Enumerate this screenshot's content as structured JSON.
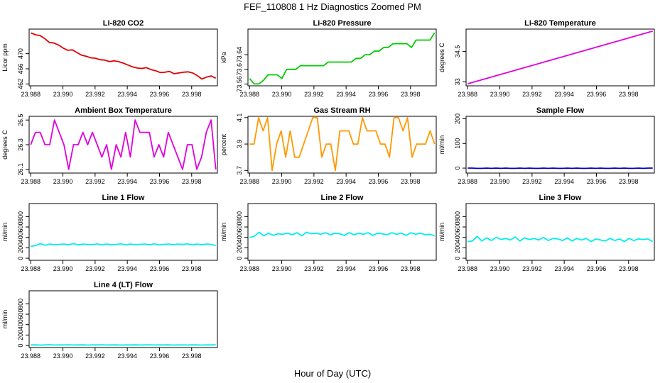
{
  "figure": {
    "title": "FEF_110808  1 Hz Diagnostics Zoomed PM",
    "xlabel": "Hour of Day (UTC)"
  },
  "chart_data": [
    {
      "type": "line",
      "title": "Li-820 CO2",
      "ylabel": "Licor ppm",
      "color": "#e00000",
      "xlim": [
        23.9879,
        23.9996
      ],
      "xticks": [
        "23.988",
        "23.990",
        "23.992",
        "23.994",
        "23.996",
        "23.998"
      ],
      "ylim": [
        461.5,
        476.5
      ],
      "yticks": [
        462,
        466,
        470
      ],
      "x_start": 23.988,
      "x_end": 23.9995,
      "values": [
        475.5,
        475,
        474.8,
        474,
        473,
        472.8,
        472.3,
        471.5,
        470.9,
        471,
        470.3,
        469.6,
        469.3,
        468.9,
        468.8,
        468.4,
        468.3,
        467.9,
        468.1,
        467.9,
        467.5,
        467,
        466.5,
        466.2,
        466.1,
        466.3,
        465.8,
        465.5,
        465,
        465.1,
        465.3,
        464.7,
        464.9,
        465.1,
        465.2,
        464.9,
        464.2,
        463.3,
        463.8,
        464.1,
        463.5
      ]
    },
    {
      "type": "line",
      "title": "Li-820 Pressure",
      "ylabel": "kPa",
      "color": "#00cc00",
      "xlim": [
        23.9879,
        23.9996
      ],
      "xticks": [
        "23.988",
        "23.990",
        "23.992",
        "23.994",
        "23.996",
        "23.998"
      ],
      "ylim": [
        73.555,
        73.71
      ],
      "yticks": [
        73.56,
        73.6,
        73.64
      ],
      "x_start": 23.988,
      "x_end": 23.9995,
      "values": [
        73.575,
        73.56,
        73.56,
        73.57,
        73.585,
        73.585,
        73.585,
        73.575,
        73.6,
        73.6,
        73.6,
        73.61,
        73.61,
        73.61,
        73.61,
        73.61,
        73.61,
        73.62,
        73.62,
        73.62,
        73.62,
        73.62,
        73.62,
        73.63,
        73.63,
        73.64,
        73.64,
        73.65,
        73.65,
        73.66,
        73.66,
        73.67,
        73.67,
        73.67,
        73.67,
        73.66,
        73.68,
        73.68,
        73.68,
        73.68,
        73.7
      ]
    },
    {
      "type": "line",
      "title": "Li-820 Temperature",
      "ylabel": "degrees C",
      "color": "#e000e0",
      "xlim": [
        23.9879,
        23.9996
      ],
      "xticks": [
        "23.988",
        "23.990",
        "23.992",
        "23.994",
        "23.996",
        "23.998"
      ],
      "ylim": [
        32.8,
        35.6
      ],
      "yticks": [
        33,
        34.5
      ],
      "x_start": 23.988,
      "x_end": 23.9995,
      "y_start": 32.9,
      "y_end": 35.5,
      "values": []
    },
    {
      "type": "line",
      "title": "Ambient Box Temperature",
      "ylabel": "degrees C",
      "color": "#e000e0",
      "xlim": [
        23.9879,
        23.9996
      ],
      "xticks": [
        "23.988",
        "23.990",
        "23.992",
        "23.994",
        "23.996",
        "23.998"
      ],
      "ylim": [
        26.07,
        26.53
      ],
      "yticks": [
        26.1,
        26.3,
        26.5
      ],
      "x_start": 23.988,
      "x_end": 23.9995,
      "values": [
        26.3,
        26.4,
        26.4,
        26.3,
        26.3,
        26.5,
        26.4,
        26.3,
        26.1,
        26.3,
        26.3,
        26.4,
        26.3,
        26.4,
        26.3,
        26.2,
        26.3,
        26.1,
        26.3,
        26.2,
        26.4,
        26.2,
        26.5,
        26.4,
        26.4,
        26.4,
        26.2,
        26.3,
        26.2,
        26.4,
        26.3,
        26.2,
        26.1,
        26.3,
        26.3,
        26.1,
        26.2,
        26.4,
        26.5,
        26.1
      ]
    },
    {
      "type": "line",
      "title": "Gas Stream RH",
      "ylabel": "percent",
      "color": "#ff9900",
      "xlim": [
        23.9879,
        23.9996
      ],
      "xticks": [
        "23.988",
        "23.990",
        "23.992",
        "23.994",
        "23.996",
        "23.998"
      ],
      "ylim": [
        3.68,
        4.11
      ],
      "yticks": [
        3.7,
        3.9,
        4.1
      ],
      "x_start": 23.988,
      "x_end": 23.9995,
      "values": [
        3.9,
        3.9,
        4.1,
        4.0,
        4.1,
        3.7,
        3.9,
        4.0,
        3.8,
        4.0,
        3.8,
        3.8,
        3.9,
        4.0,
        4.1,
        4.1,
        3.8,
        3.9,
        3.9,
        3.7,
        4.0,
        4.0,
        4.0,
        3.9,
        3.9,
        4.1,
        4.0,
        4.0,
        4.0,
        3.9,
        3.9,
        3.8,
        4.1,
        4.1,
        4.0,
        4.1,
        3.8,
        3.9,
        3.9,
        3.9,
        4.0,
        3.9
      ]
    },
    {
      "type": "line",
      "title": "Sample Flow",
      "ylabel": "ml/min",
      "color": "#0000cc",
      "xlim": [
        23.9879,
        23.9996
      ],
      "xticks": [
        "23.988",
        "23.990",
        "23.992",
        "23.994",
        "23.996",
        "23.998"
      ],
      "ylim": [
        -20,
        210
      ],
      "yticks": [
        0,
        100,
        200
      ],
      "x_start": 23.988,
      "x_end": 23.9995,
      "values": [
        0,
        0,
        -1,
        -1,
        0,
        -1,
        0,
        -1,
        0,
        -1,
        -1,
        0,
        -1,
        0,
        -1,
        -1,
        0,
        -1,
        0,
        -1,
        -1,
        0,
        -1,
        0,
        -1,
        -1,
        0,
        -1,
        0,
        -1,
        -1,
        0,
        -1,
        0,
        -1,
        -1,
        0,
        -1,
        0,
        0
      ]
    },
    {
      "type": "line",
      "title": "Line 1 Flow",
      "ylabel": "ml/min",
      "color": "#00eeee",
      "xlim": [
        23.9879,
        23.9996
      ],
      "xticks": [
        "23.988",
        "23.990",
        "23.992",
        "23.994",
        "23.996",
        "23.998"
      ],
      "ylim": [
        -40,
        1050
      ],
      "yticks": [
        0,
        200,
        400,
        600,
        800
      ],
      "x_start": 23.988,
      "x_end": 23.9995,
      "values": [
        230,
        240,
        280,
        250,
        270,
        260,
        265,
        270,
        260,
        280,
        255,
        270,
        265,
        260,
        275,
        255,
        270,
        260,
        265,
        275,
        255,
        270,
        260,
        265,
        270,
        260,
        275,
        255,
        265,
        270,
        260,
        270,
        265,
        275,
        255,
        270,
        260,
        270,
        265,
        245
      ]
    },
    {
      "type": "line",
      "title": "Line 2 Flow",
      "ylabel": "ml/min",
      "color": "#00eeee",
      "xlim": [
        23.9879,
        23.9996
      ],
      "xticks": [
        "23.988",
        "23.990",
        "23.992",
        "23.994",
        "23.996",
        "23.998"
      ],
      "ylim": [
        -40,
        1050
      ],
      "yticks": [
        0,
        200,
        400,
        600,
        800
      ],
      "x_start": 23.988,
      "x_end": 23.9995,
      "values": [
        400,
        420,
        500,
        430,
        480,
        440,
        470,
        460,
        480,
        450,
        490,
        430,
        500,
        470,
        480,
        460,
        490,
        450,
        480,
        470,
        440,
        490,
        450,
        480,
        460,
        490,
        440,
        480,
        470,
        450,
        490,
        460,
        480,
        440,
        490,
        460,
        480,
        450,
        460,
        430
      ]
    },
    {
      "type": "line",
      "title": "Line 3 Flow",
      "ylabel": "ml/min",
      "color": "#00eeee",
      "xlim": [
        23.9879,
        23.9996
      ],
      "xticks": [
        "23.988",
        "23.990",
        "23.992",
        "23.994",
        "23.996",
        "23.998"
      ],
      "ylim": [
        -40,
        1050
      ],
      "yticks": [
        0,
        200,
        400,
        600,
        800
      ],
      "x_start": 23.988,
      "x_end": 23.9995,
      "values": [
        320,
        330,
        420,
        330,
        390,
        340,
        400,
        360,
        380,
        350,
        410,
        330,
        390,
        360,
        380,
        350,
        400,
        340,
        380,
        370,
        340,
        390,
        330,
        380,
        350,
        380,
        320,
        370,
        350,
        330,
        380,
        340,
        370,
        320,
        380,
        340,
        370,
        360,
        370,
        320
      ]
    },
    {
      "type": "line",
      "title": "Line 4 (LT) Flow",
      "ylabel": "ml/min",
      "color": "#00eeee",
      "xlim": [
        23.9879,
        23.9996
      ],
      "xticks": [
        "23.988",
        "23.990",
        "23.992",
        "23.994",
        "23.996",
        "23.998"
      ],
      "ylim": [
        -40,
        1050
      ],
      "yticks": [
        0,
        200,
        400,
        600,
        800
      ],
      "x_start": 23.988,
      "x_end": 23.9995,
      "values": [
        10,
        12,
        8,
        10,
        14,
        9,
        11,
        10,
        13,
        9,
        10,
        12,
        8,
        11,
        10,
        13,
        9,
        10,
        12,
        8,
        11,
        10,
        12,
        9,
        10,
        13,
        9,
        11,
        10,
        12,
        8,
        10,
        11,
        9,
        12,
        10,
        8,
        11,
        10,
        12
      ]
    }
  ]
}
